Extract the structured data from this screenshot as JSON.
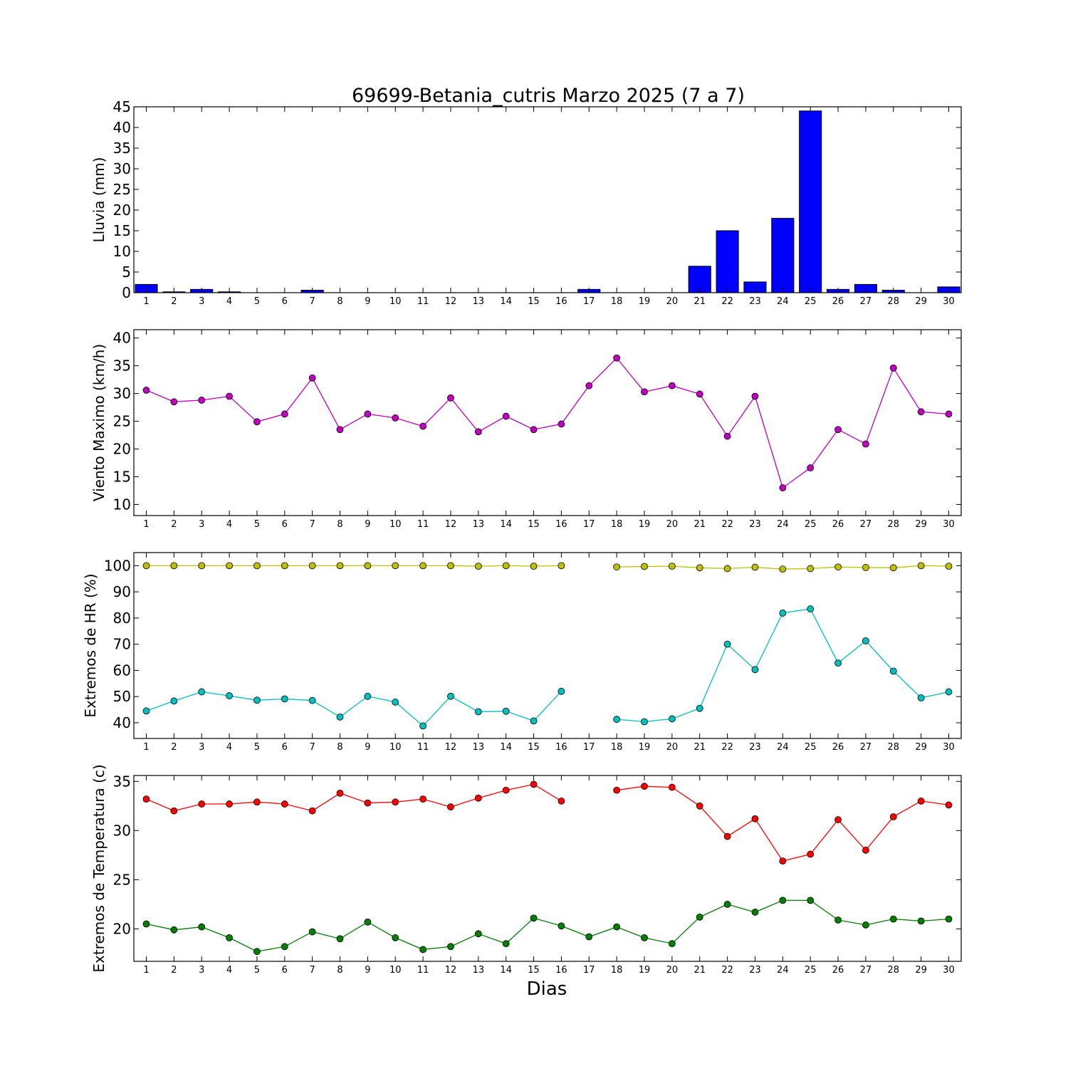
{
  "title": "69699-Betania_cutris Marzo 2025  (7 a 7)",
  "xlabel": "Dias",
  "chart_data": [
    {
      "type": "bar",
      "ylabel": "Lluvia (mm)",
      "ylim": [
        0,
        45
      ],
      "yticks": [
        0,
        5,
        10,
        15,
        20,
        25,
        30,
        35,
        40,
        45
      ],
      "categories": [
        1,
        2,
        3,
        4,
        5,
        6,
        7,
        8,
        9,
        10,
        11,
        12,
        13,
        14,
        15,
        16,
        17,
        18,
        19,
        20,
        21,
        22,
        23,
        24,
        25,
        26,
        27,
        28,
        29,
        30
      ],
      "series": [
        {
          "color": "#0000ff",
          "values": [
            2.0,
            0.2,
            0.8,
            0.2,
            0.0,
            0.0,
            0.6,
            0.0,
            0.0,
            0.0,
            0.0,
            0.0,
            0.0,
            0.0,
            0.0,
            0.0,
            0.8,
            0.0,
            0.0,
            0.0,
            6.4,
            15.0,
            2.6,
            18.0,
            44.0,
            0.8,
            2.0,
            0.6,
            0.0,
            1.4
          ]
        }
      ]
    },
    {
      "type": "line",
      "ylabel": "Viento Maximo (km/h)",
      "ylim": [
        8,
        41.5
      ],
      "yticks": [
        10,
        15,
        20,
        25,
        30,
        35,
        40
      ],
      "categories": [
        1,
        2,
        3,
        4,
        5,
        6,
        7,
        8,
        9,
        10,
        11,
        12,
        13,
        14,
        15,
        16,
        17,
        18,
        19,
        20,
        21,
        22,
        23,
        24,
        25,
        26,
        27,
        28,
        29,
        30
      ],
      "series": [
        {
          "color": "#bf00bf",
          "values": [
            30.6,
            28.5,
            28.8,
            29.5,
            24.9,
            26.3,
            32.8,
            23.5,
            26.3,
            25.6,
            24.1,
            29.2,
            23.1,
            25.9,
            23.5,
            24.5,
            31.4,
            36.4,
            30.3,
            31.4,
            29.9,
            22.3,
            29.5,
            13.0,
            16.6,
            23.5,
            20.9,
            34.6,
            26.7,
            26.3
          ]
        }
      ]
    },
    {
      "type": "line",
      "ylabel": "Extremos de HR (%)",
      "ylim": [
        34,
        105
      ],
      "yticks": [
        40,
        50,
        60,
        70,
        80,
        90,
        100
      ],
      "categories": [
        1,
        2,
        3,
        4,
        5,
        6,
        7,
        8,
        9,
        10,
        11,
        12,
        13,
        14,
        15,
        16,
        17,
        18,
        19,
        20,
        21,
        22,
        23,
        24,
        25,
        26,
        27,
        28,
        29,
        30
      ],
      "series": [
        {
          "color": "#bfbf00",
          "values": [
            100.0,
            100.0,
            100.0,
            100.0,
            100.0,
            100.0,
            100.0,
            100.0,
            100.0,
            100.0,
            100.0,
            100.0,
            99.8,
            100.0,
            99.8,
            100.0,
            null,
            99.5,
            99.7,
            99.8,
            99.2,
            98.9,
            99.4,
            98.7,
            98.9,
            99.5,
            99.3,
            99.2,
            100.0,
            99.8
          ]
        },
        {
          "color": "#00bfbf",
          "values": [
            44.5,
            48.3,
            51.8,
            50.3,
            48.6,
            49.1,
            48.5,
            42.2,
            50.1,
            47.9,
            38.8,
            50.1,
            44.2,
            44.4,
            40.7,
            52.0,
            null,
            41.3,
            40.4,
            41.5,
            45.5,
            70.0,
            60.3,
            81.9,
            83.5,
            62.8,
            71.3,
            59.7,
            49.5,
            51.8
          ]
        }
      ]
    },
    {
      "type": "line",
      "ylabel": "Extremos de Temperatura (c)",
      "ylim": [
        16.7,
        35.6
      ],
      "yticks": [
        20,
        25,
        30,
        35
      ],
      "categories": [
        1,
        2,
        3,
        4,
        5,
        6,
        7,
        8,
        9,
        10,
        11,
        12,
        13,
        14,
        15,
        16,
        17,
        18,
        19,
        20,
        21,
        22,
        23,
        24,
        25,
        26,
        27,
        28,
        29,
        30
      ],
      "series": [
        {
          "color": "#ff0000",
          "values": [
            33.2,
            32.0,
            32.7,
            32.7,
            32.9,
            32.7,
            32.0,
            33.8,
            32.8,
            32.9,
            33.2,
            32.4,
            33.3,
            34.1,
            34.7,
            33.0,
            null,
            34.1,
            34.5,
            34.4,
            32.5,
            29.4,
            31.2,
            26.9,
            27.6,
            31.1,
            28.0,
            31.4,
            33.0,
            32.6
          ]
        },
        {
          "color": "#007f00",
          "values": [
            20.5,
            19.9,
            20.2,
            19.1,
            17.7,
            18.2,
            19.7,
            19.0,
            20.7,
            19.1,
            17.9,
            18.2,
            19.5,
            18.5,
            21.1,
            20.3,
            19.2,
            20.2,
            19.1,
            18.5,
            21.2,
            22.5,
            21.7,
            22.9,
            22.9,
            20.9,
            20.4,
            21.0,
            20.8,
            21.0
          ]
        }
      ]
    }
  ]
}
